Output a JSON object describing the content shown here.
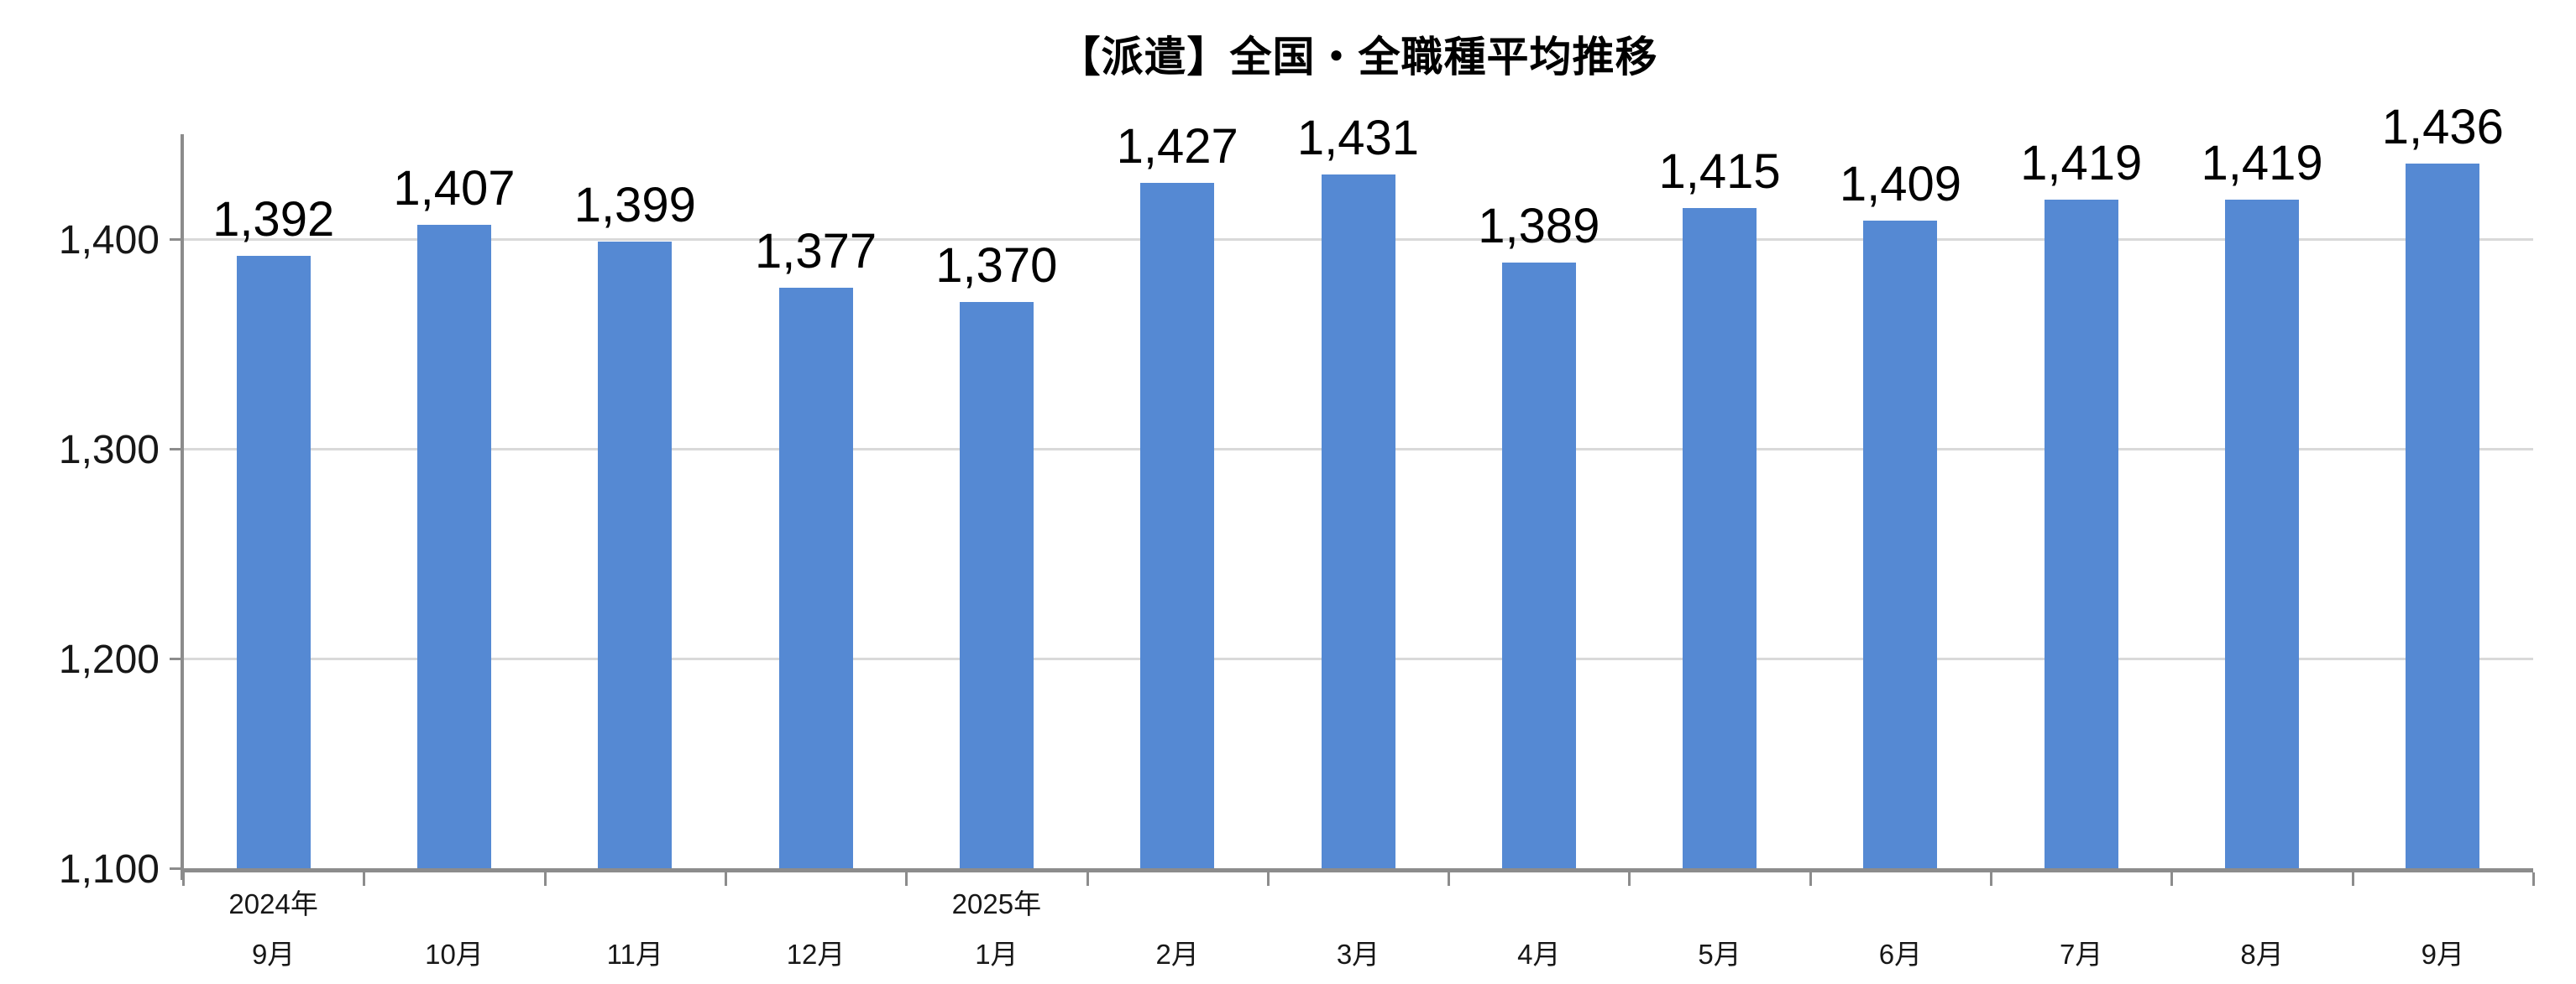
{
  "chart_data": {
    "type": "bar",
    "title": "【派遣】全国・全職種平均推移",
    "categories": [
      "9月",
      "10月",
      "11月",
      "12月",
      "1月",
      "2月",
      "3月",
      "4月",
      "5月",
      "6月",
      "7月",
      "8月",
      "9月"
    ],
    "year_markers": [
      {
        "index": 0,
        "label": "2024年"
      },
      {
        "index": 4,
        "label": "2025年"
      }
    ],
    "values": [
      1392,
      1407,
      1399,
      1377,
      1370,
      1427,
      1431,
      1389,
      1415,
      1409,
      1419,
      1419,
      1436
    ],
    "value_labels": [
      "1,392",
      "1,407",
      "1,399",
      "1,377",
      "1,370",
      "1,427",
      "1,431",
      "1,389",
      "1,415",
      "1,409",
      "1,419",
      "1,419",
      "1,436"
    ],
    "xlabel": "",
    "ylabel": "",
    "ylim": [
      1100,
      1450
    ],
    "yticks": [
      {
        "value": 1100,
        "label": "1,100"
      },
      {
        "value": 1200,
        "label": "1,200"
      },
      {
        "value": 1300,
        "label": "1,300"
      },
      {
        "value": 1400,
        "label": "1,400"
      }
    ],
    "grid": "horizontal-on",
    "legend": "none",
    "colors": {
      "bar": "#5589D3",
      "gridline": "#D9D9D9",
      "axis": "#8C8C8C",
      "data_label": "#000000",
      "tick_label": "#171717",
      "background": "#FFFFFF"
    }
  }
}
